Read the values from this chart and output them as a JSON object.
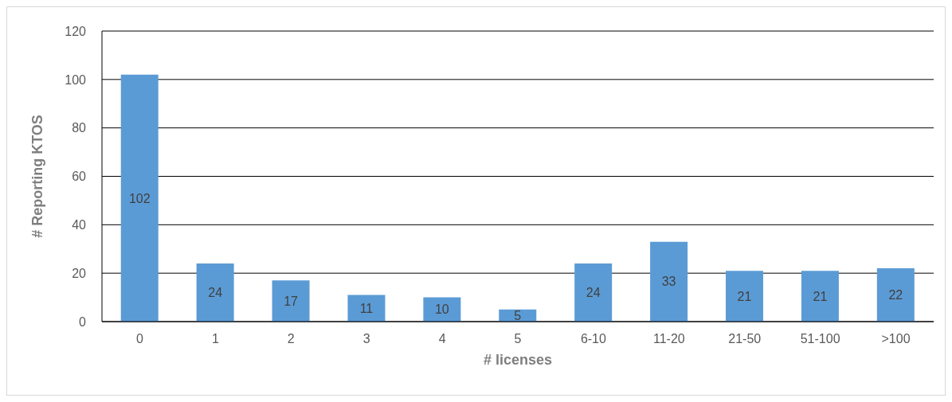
{
  "chart_data": {
    "type": "bar",
    "xlabel": "# licenses",
    "ylabel": "# Reporting KTOS",
    "categories": [
      "0",
      "1",
      "2",
      "3",
      "4",
      "5",
      "6-10",
      "11-20",
      "21-50",
      "51-100",
      ">100"
    ],
    "values": [
      102,
      24,
      17,
      11,
      10,
      5,
      24,
      33,
      21,
      21,
      22
    ],
    "color": "#5b9bd5",
    "ylim": [
      0,
      120
    ],
    "yticks": [
      0,
      20,
      40,
      60,
      80,
      100,
      120
    ],
    "grid": "y",
    "data_labels": true
  }
}
